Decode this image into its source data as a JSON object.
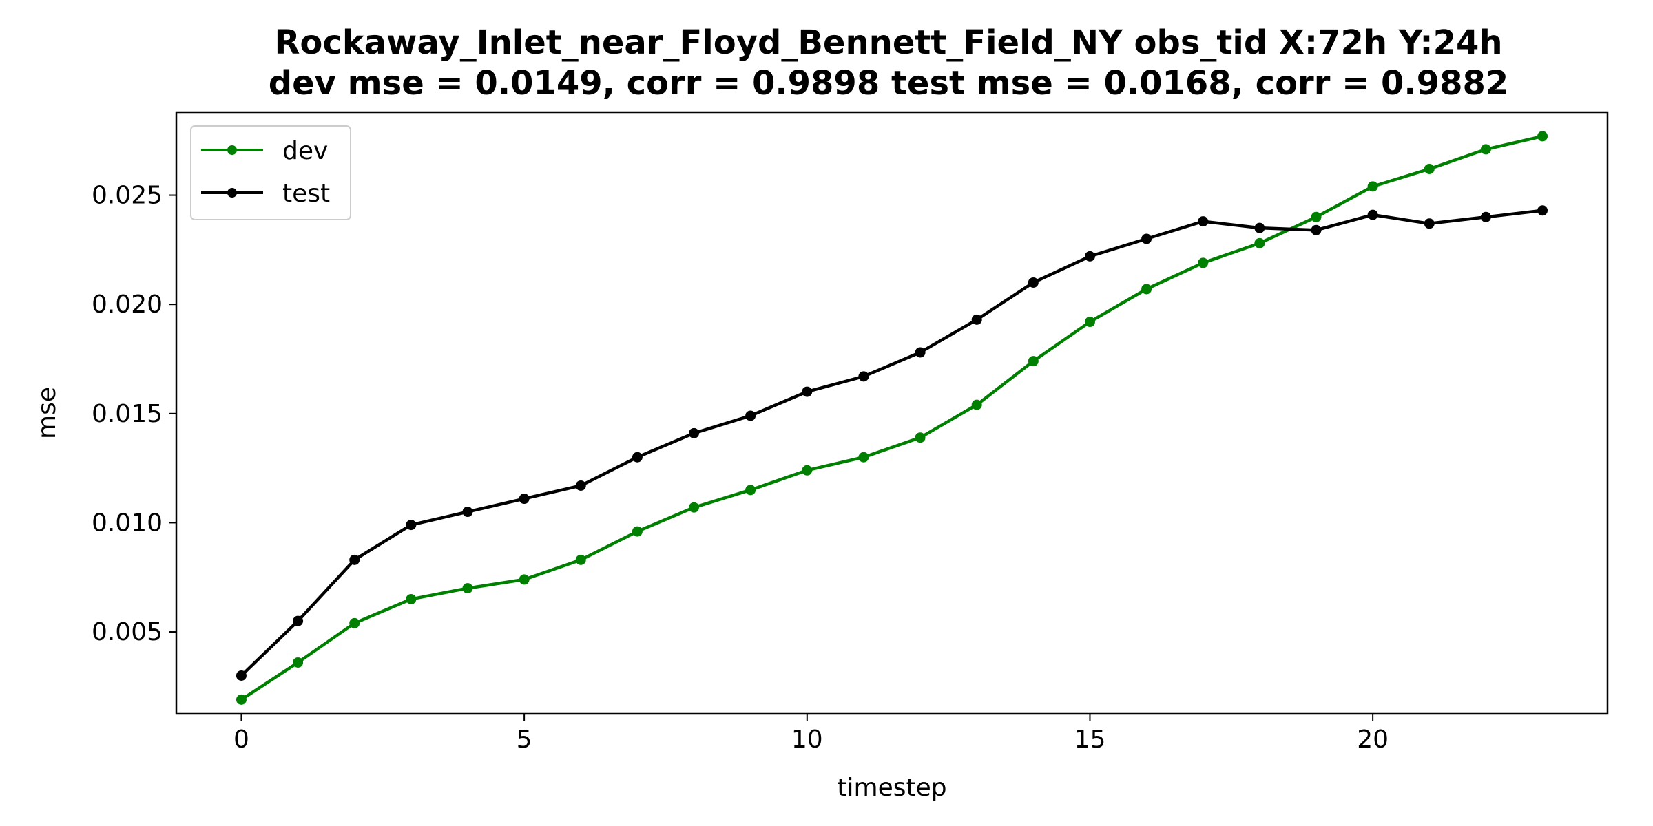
{
  "chart_data": {
    "type": "line",
    "title": [
      "Rockaway_Inlet_near_Floyd_Bennett_Field_NY   obs_tid   X:72h   Y:24h",
      "dev mse = 0.0149, corr = 0.9898   test mse = 0.0168, corr = 0.9882"
    ],
    "xlabel": "timestep",
    "ylabel": "mse",
    "x": [
      0,
      1,
      2,
      3,
      4,
      5,
      6,
      7,
      8,
      9,
      10,
      11,
      12,
      13,
      14,
      15,
      16,
      17,
      18,
      19,
      20,
      21,
      22,
      23
    ],
    "xlim": [
      -1.15,
      24.15
    ],
    "ylim": [
      0.00125,
      0.0288
    ],
    "xticks": [
      0,
      5,
      10,
      15,
      20
    ],
    "xtick_labels": [
      "0",
      "5",
      "10",
      "15",
      "20"
    ],
    "yticks": [
      0.005,
      0.01,
      0.015,
      0.02,
      0.025
    ],
    "ytick_labels": [
      "0.005",
      "0.010",
      "0.015",
      "0.020",
      "0.025"
    ],
    "grid": false,
    "legend_position": "top-left",
    "series": [
      {
        "name": "dev",
        "color": "#008000",
        "values": [
          0.0019,
          0.0036,
          0.0054,
          0.0065,
          0.007,
          0.0074,
          0.0083,
          0.0096,
          0.0107,
          0.0115,
          0.0124,
          0.013,
          0.0139,
          0.0154,
          0.0174,
          0.0192,
          0.0207,
          0.0219,
          0.0228,
          0.024,
          0.0254,
          0.0262,
          0.0271,
          0.0277
        ]
      },
      {
        "name": "test",
        "color": "#000000",
        "values": [
          0.003,
          0.0055,
          0.0083,
          0.0099,
          0.0105,
          0.0111,
          0.0117,
          0.013,
          0.0141,
          0.0149,
          0.016,
          0.0167,
          0.0178,
          0.0193,
          0.021,
          0.0222,
          0.023,
          0.0238,
          0.0235,
          0.0234,
          0.0241,
          0.0237,
          0.024,
          0.0243
        ]
      }
    ]
  }
}
